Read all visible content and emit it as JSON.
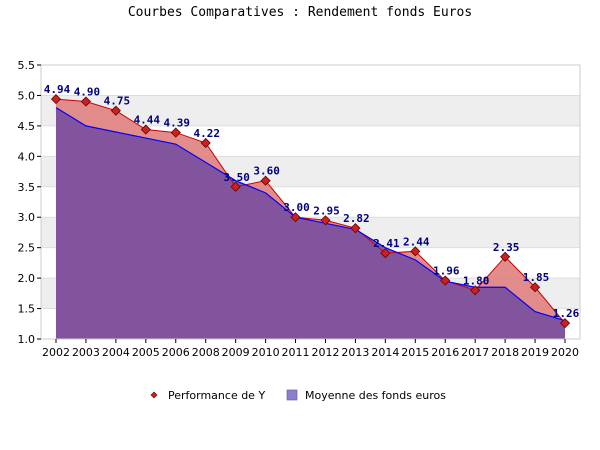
{
  "chart_data": {
    "type": "area",
    "title": "Courbes Comparatives : Rendement fonds Euros",
    "xlabel": "",
    "ylabel": "",
    "ylim": [
      1.0,
      5.5
    ],
    "yticks": [
      "1.0",
      "1.5",
      "2.0",
      "2.5",
      "3.0",
      "3.5",
      "4.0",
      "4.5",
      "5.0",
      "5.5"
    ],
    "categories": [
      "2002",
      "2003",
      "2004",
      "2005",
      "2006",
      "2008",
      "2009",
      "2010",
      "2011",
      "2012",
      "2013",
      "2014",
      "2015",
      "2016",
      "2017",
      "2018",
      "2019",
      "2020"
    ],
    "grid": "horizontal bands",
    "legend_position": "bottom",
    "series": [
      {
        "name": "Performance de Y",
        "color": "#cc0000",
        "fill": "#e08080",
        "values": [
          4.94,
          4.9,
          4.75,
          4.44,
          4.39,
          4.22,
          3.5,
          3.6,
          3.0,
          2.95,
          2.82,
          2.41,
          2.44,
          1.96,
          1.8,
          2.35,
          1.85,
          1.26
        ],
        "labels": [
          "4.94",
          "4.90",
          "4.75",
          "4.44",
          "4.39",
          "4.22",
          "3.50",
          "3.60",
          "3.00",
          "2.95",
          "2.82",
          "2.41",
          "2.44",
          "1.96",
          "1.80",
          "2.35",
          "1.85",
          "1.26"
        ]
      },
      {
        "name": "Moyenne des fonds euros",
        "color": "#0000ff",
        "fill": "#7b4fa0",
        "values": [
          4.8,
          4.5,
          4.4,
          4.3,
          4.2,
          3.9,
          3.6,
          3.4,
          3.0,
          2.9,
          2.8,
          2.5,
          2.3,
          1.95,
          1.85,
          1.85,
          1.45,
          1.3
        ]
      }
    ]
  }
}
